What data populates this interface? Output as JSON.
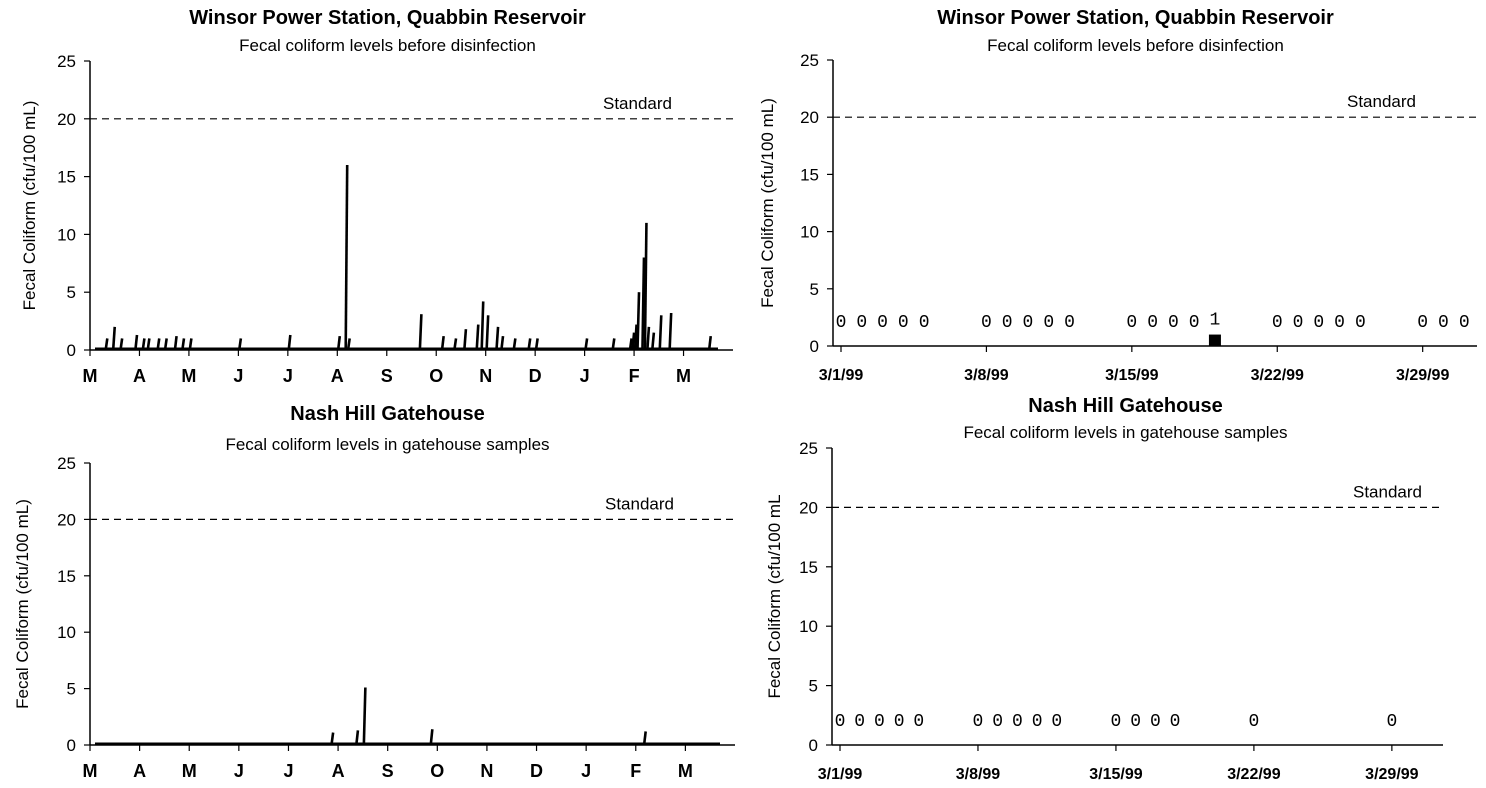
{
  "chart_data": [
    {
      "type": "line",
      "title": "Winsor Power Station, Quabbin Reservoir",
      "subtitle": "Fecal coliform levels before disinfection",
      "ylabel": "Fecal Coliform (cfu/100 mL)",
      "xlabel": "",
      "ylim": [
        0,
        25
      ],
      "yticks": [
        "0",
        "5",
        "10",
        "15",
        "20",
        "25"
      ],
      "xtick_labels": [
        "M",
        "A",
        "M",
        "J",
        "J",
        "A",
        "S",
        "O",
        "N",
        "D",
        "J",
        "F",
        "M"
      ],
      "xlim": [
        0,
        13
      ],
      "grid": false,
      "reference_line": {
        "label": "Standard",
        "value": 20
      },
      "series": [
        {
          "x": [
            0.35,
            0.5,
            0.65,
            0.95,
            1.1,
            1.2,
            1.4,
            1.55,
            1.75,
            1.9,
            2.05,
            3.05,
            4.05,
            5.05,
            5.2,
            5.25,
            6.7,
            7.15,
            7.4,
            7.6,
            7.85,
            7.95,
            8.05,
            8.25,
            8.35,
            8.6,
            8.9,
            9.05,
            10.05,
            10.6,
            10.95,
            11.0,
            11.05,
            11.1,
            11.2,
            11.25,
            11.3,
            11.4,
            11.55,
            11.75,
            12.55
          ],
          "y": [
            1,
            2,
            1,
            1.3,
            1,
            1,
            1,
            1,
            1.2,
            1,
            1,
            1,
            1.3,
            1.2,
            16,
            1,
            3.1,
            1.2,
            1,
            1.8,
            2.2,
            4.2,
            3,
            2,
            1.2,
            1,
            1,
            1,
            1,
            1,
            1,
            1.5,
            2.2,
            5,
            8,
            11,
            2,
            1.5,
            3,
            3.2,
            1.2
          ]
        }
      ]
    },
    {
      "type": "scatter",
      "title": "Winsor Power Station, Quabbin Reservoir",
      "subtitle": "Fecal coliform levels before disinfection",
      "ylabel": "Fecal Coliform (cfu/100 mL)",
      "xlabel": "",
      "ylim": [
        0,
        25
      ],
      "yticks": [
        "0",
        "5",
        "10",
        "15",
        "20",
        "25"
      ],
      "x_start": "3/1/99",
      "xtick_labels": [
        "3/1/99",
        "3/8/99",
        "3/15/99",
        "3/22/99",
        "3/29/99"
      ],
      "grid": false,
      "reference_line": {
        "label": "Standard",
        "value": 20
      },
      "series": [
        {
          "dates": [
            "3/1/99",
            "3/2/99",
            "3/3/99",
            "3/4/99",
            "3/5/99",
            "3/8/99",
            "3/9/99",
            "3/10/99",
            "3/11/99",
            "3/12/99",
            "3/15/99",
            "3/16/99",
            "3/17/99",
            "3/18/99",
            "3/19/99",
            "3/22/99",
            "3/23/99",
            "3/24/99",
            "3/25/99",
            "3/26/99",
            "3/29/99",
            "3/30/99",
            "3/31/99"
          ],
          "values": [
            0,
            0,
            0,
            0,
            0,
            0,
            0,
            0,
            0,
            0,
            0,
            0,
            0,
            0,
            1,
            0,
            0,
            0,
            0,
            0,
            0,
            0,
            0
          ],
          "labels": [
            "0",
            "0",
            "0",
            "0",
            "0",
            "0",
            "0",
            "0",
            "0",
            "0",
            "0",
            "0",
            "0",
            "0",
            "1",
            "0",
            "0",
            "0",
            "0",
            "0",
            "0",
            "0",
            "0"
          ]
        }
      ]
    },
    {
      "type": "line",
      "title": "Nash Hill Gatehouse",
      "subtitle": "Fecal coliform levels in gatehouse samples",
      "ylabel": "Fecal Coliform (cfu/100 mL)",
      "xlabel": "",
      "ylim": [
        0,
        25
      ],
      "yticks": [
        "0",
        "5",
        "10",
        "15",
        "20",
        "25"
      ],
      "xtick_labels": [
        "M",
        "A",
        "M",
        "J",
        "J",
        "A",
        "S",
        "O",
        "N",
        "D",
        "J",
        "F",
        "M"
      ],
      "xlim": [
        0,
        13
      ],
      "grid": false,
      "reference_line": {
        "label": "Standard",
        "value": 20
      },
      "series": [
        {
          "x": [
            4.9,
            5.4,
            5.55,
            6.9,
            11.2
          ],
          "y": [
            1.1,
            1.3,
            5.1,
            1.4,
            1.2
          ]
        }
      ]
    },
    {
      "type": "scatter",
      "title": "Nash Hill Gatehouse",
      "subtitle": "Fecal coliform levels in gatehouse samples",
      "ylabel": "Fecal Coliform (cfu/100 mL",
      "xlabel": "",
      "ylim": [
        0,
        25
      ],
      "yticks": [
        "0",
        "5",
        "10",
        "15",
        "20",
        "25"
      ],
      "x_start": "3/1/99",
      "xtick_labels": [
        "3/1/99",
        "3/8/99",
        "3/15/99",
        "3/22/99",
        "3/29/99"
      ],
      "grid": false,
      "reference_line": {
        "label": "Standard",
        "value": 20
      },
      "series": [
        {
          "dates": [
            "3/1/99",
            "3/2/99",
            "3/3/99",
            "3/4/99",
            "3/5/99",
            "3/8/99",
            "3/9/99",
            "3/10/99",
            "3/11/99",
            "3/12/99",
            "3/15/99",
            "3/16/99",
            "3/17/99",
            "3/18/99",
            "3/22/99",
            "3/29/99"
          ],
          "values": [
            0,
            0,
            0,
            0,
            0,
            0,
            0,
            0,
            0,
            0,
            0,
            0,
            0,
            0,
            0,
            0
          ],
          "labels": [
            "0",
            "0",
            "0",
            "0",
            "0",
            "0",
            "0",
            "0",
            "0",
            "0",
            "0",
            "0",
            "0",
            "0",
            "0",
            "0"
          ]
        }
      ]
    }
  ]
}
